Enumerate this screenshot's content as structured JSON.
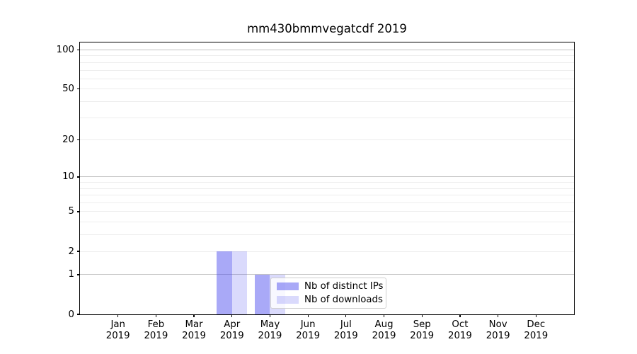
{
  "title": "mm430bmmvegatcdf 2019",
  "chart_data": {
    "type": "bar",
    "title": "mm430bmmvegatcdf 2019",
    "categories": [
      "Jan",
      "Feb",
      "Mar",
      "Apr",
      "May",
      "Jun",
      "Jul",
      "Aug",
      "Sep",
      "Oct",
      "Nov",
      "Dec"
    ],
    "category_year": "2019",
    "series": [
      {
        "name": "Nb of distinct IPs",
        "color": "rgba(68,68,238,0.46)",
        "values": [
          0,
          0,
          0,
          2,
          1,
          0,
          0,
          0,
          0,
          0,
          0,
          0
        ]
      },
      {
        "name": "Nb of downloads",
        "color": "rgba(68,68,238,0.20)",
        "values": [
          0,
          0,
          0,
          2,
          1,
          0,
          0,
          0,
          0,
          0,
          0,
          0
        ]
      }
    ],
    "yscale": "log1p",
    "ylim": [
      0,
      113
    ],
    "yticks": [
      0,
      1,
      2,
      5,
      10,
      20,
      50,
      100
    ],
    "major_gridlines": [
      1,
      10,
      100
    ],
    "minor_gridlines": [
      2,
      3,
      4,
      5,
      6,
      7,
      8,
      9,
      20,
      30,
      40,
      50,
      60,
      70,
      80,
      90
    ],
    "grid_color_major": "#c2c2c2",
    "grid_color_minor": "#ededed",
    "legend_position": "lower center-right inside plot",
    "xlabel": "",
    "ylabel": ""
  }
}
